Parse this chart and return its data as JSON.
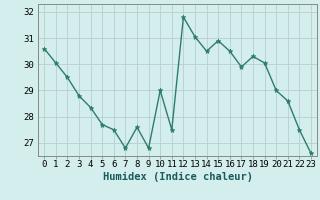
{
  "x": [
    0,
    1,
    2,
    3,
    4,
    5,
    6,
    7,
    8,
    9,
    10,
    11,
    12,
    13,
    14,
    15,
    16,
    17,
    18,
    19,
    20,
    21,
    22,
    23
  ],
  "y": [
    30.6,
    30.05,
    29.5,
    28.8,
    28.35,
    27.7,
    27.5,
    26.8,
    27.6,
    26.8,
    29.0,
    27.5,
    31.8,
    31.05,
    30.5,
    30.9,
    30.5,
    29.9,
    30.3,
    30.05,
    29.0,
    28.6,
    27.5,
    26.6
  ],
  "xlabel": "Humidex (Indice chaleur)",
  "ylim": [
    26.5,
    32.3
  ],
  "xlim": [
    -0.5,
    23.5
  ],
  "yticks": [
    27,
    28,
    29,
    30,
    31,
    32
  ],
  "xticks": [
    0,
    1,
    2,
    3,
    4,
    5,
    6,
    7,
    8,
    9,
    10,
    11,
    12,
    13,
    14,
    15,
    16,
    17,
    18,
    19,
    20,
    21,
    22,
    23
  ],
  "line_color": "#2d7d6e",
  "marker_color": "#2d7d6e",
  "bg_color": "#d4eeee",
  "grid_color": "#b8cece",
  "axis_color": "#555555",
  "xlabel_fontsize": 7.5,
  "tick_fontsize": 6.5,
  "fig_bg": "#d4eeee",
  "spine_color": "#888888"
}
